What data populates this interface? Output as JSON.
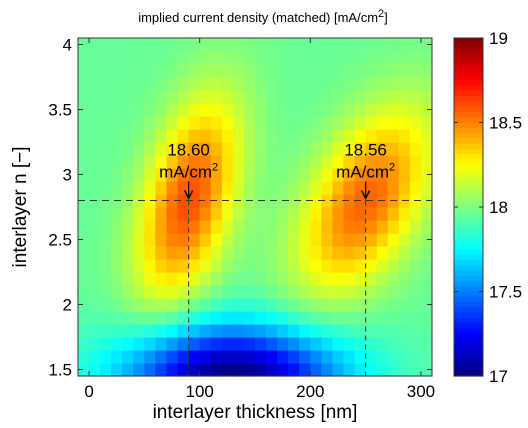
{
  "chart_data": {
    "type": "heatmap",
    "title": "implied current density (matched) [mA/cm",
    "title_sup": "2",
    "title_tail": "]",
    "xlabel": "interlayer thickness [nm]",
    "ylabel": "interlayer n [−]",
    "xlim": [
      -10,
      310
    ],
    "ylim": [
      1.45,
      4.05
    ],
    "zlim": [
      17,
      19
    ],
    "xticks": [
      "0",
      "100",
      "200",
      "300"
    ],
    "xtick_values": [
      0,
      100,
      200,
      300
    ],
    "yticks": [
      "1.5",
      "2",
      "2.5",
      "3",
      "3.5",
      "4"
    ],
    "ytick_values": [
      1.5,
      2,
      2.5,
      3,
      3.5,
      4
    ],
    "colorbar_ticks": [
      "17",
      "17.5",
      "18",
      "18.5",
      "19"
    ],
    "colorbar_values": [
      17,
      17.5,
      18,
      18.5,
      19
    ],
    "grid": false,
    "colormap": "jet",
    "grid_x_step_nm": 10,
    "grid_y_step": 0.1,
    "peaks": [
      {
        "x": 90,
        "y": 2.8,
        "value": 18.6,
        "sx": 32,
        "sy": 0.55,
        "rho": 0.45
      },
      {
        "x": 250,
        "y": 2.8,
        "value": 18.56,
        "sx": 42,
        "sy": 0.5,
        "rho": 0.5
      }
    ],
    "baseline_value": 17.95,
    "valley": {
      "x": 130,
      "y": 1.45,
      "value": 17.0
    },
    "reference_line": {
      "y": 2.8,
      "x_markers": [
        90,
        250
      ]
    },
    "annotations": [
      {
        "value": "18.60",
        "unit": "mA/cm",
        "unit_sup": "2",
        "x": 90,
        "y": 2.8
      },
      {
        "value": "18.56",
        "unit": "mA/cm",
        "unit_sup": "2",
        "x": 250,
        "y": 2.8
      }
    ]
  }
}
